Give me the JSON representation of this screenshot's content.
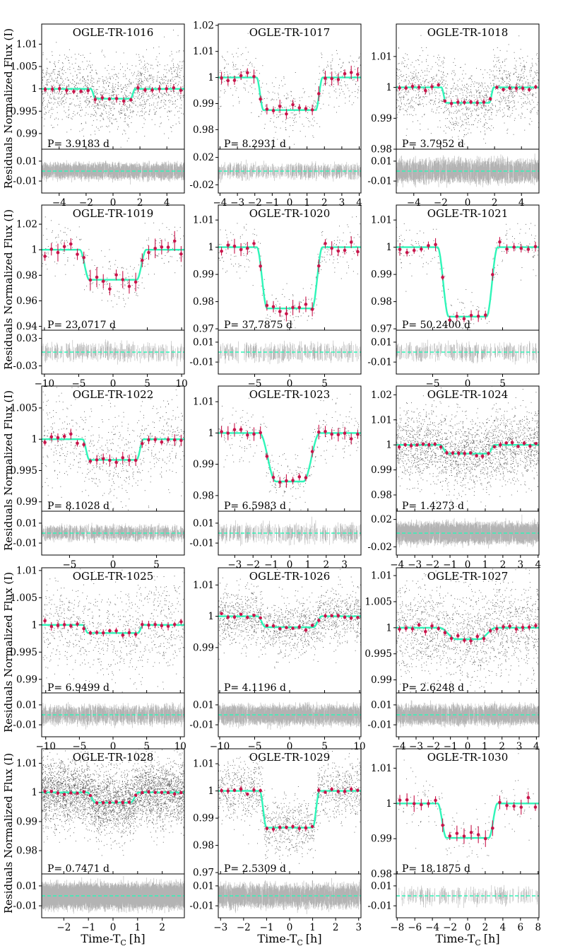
{
  "figure": {
    "ylabel": "Residuals Normalized Flux (I)",
    "xlabel": "Time-T",
    "xlabel_sub": "C",
    "xlabel_unit": "[h]",
    "colors": {
      "model": "#2ff5b8",
      "binned": "#c8144a",
      "raw": "#222222",
      "residual": "#999999"
    }
  },
  "chart_data": [
    {
      "type": "scatter",
      "title": "OGLE-TR-1016",
      "period_label": "P= 3.9183 d",
      "xlim": [
        -5.3,
        5.3
      ],
      "xticks": [
        -4,
        -2,
        0,
        2,
        4
      ],
      "ylim": [
        0.9865,
        1.0145
      ],
      "yticks": [
        0.99,
        0.995,
        1,
        1.005,
        1.01
      ],
      "ytick_labels": [
        "0.99",
        "0.995",
        "1",
        "1.005",
        "1.01"
      ],
      "res_ylim": [
        -0.022,
        0.022
      ],
      "res_yticks": [
        -0.01,
        0.01
      ],
      "res_ytick_labels": [
        "-0.01",
        "0.01"
      ],
      "depth": 0.0022,
      "t14": 3.3,
      "tin": 0.35,
      "scatter": 0.0038,
      "n_raw": 1400,
      "n_bins": 20,
      "bin_err": 0.0006
    },
    {
      "type": "scatter",
      "title": "OGLE-TR-1017",
      "period_label": "P= 8.2931 d",
      "xlim": [
        -4.1,
        4.1
      ],
      "xticks": [
        -4,
        -3,
        -2,
        -1,
        0,
        1,
        2,
        3,
        4
      ],
      "ylim": [
        0.9725,
        1.0205
      ],
      "yticks": [
        0.98,
        0.99,
        1,
        1.01,
        1.02
      ],
      "ytick_labels": [
        "0.98",
        "0.99",
        "1",
        "1.01",
        "1.02"
      ],
      "res_ylim": [
        -0.032,
        0.032
      ],
      "res_yticks": [
        -0.02,
        0.02
      ],
      "res_ytick_labels": [
        "-0.02",
        "0.02"
      ],
      "depth": 0.0125,
      "t14": 3.8,
      "tin": 0.4,
      "scatter": 0.0055,
      "n_raw": 450,
      "n_bins": 22,
      "bin_err": 0.0018
    },
    {
      "type": "scatter",
      "title": "OGLE-TR-1018",
      "period_label": "P= 3.7952 d",
      "xlim": [
        -5.3,
        5.3
      ],
      "xticks": [
        -4,
        -2,
        0,
        2,
        4
      ],
      "ylim": [
        0.98,
        1.0205
      ],
      "yticks": [
        0.98,
        0.99,
        1,
        1.01
      ],
      "ytick_labels": [
        "0.98",
        "0.99",
        "1",
        "1.01"
      ],
      "res_ylim": [
        -0.022,
        0.022
      ],
      "res_yticks": [
        -0.01,
        0.01
      ],
      "res_ytick_labels": [
        "-0.01",
        "0.01"
      ],
      "depth": 0.005,
      "t14": 3.9,
      "tin": 0.35,
      "scatter": 0.0055,
      "n_raw": 1300,
      "n_bins": 22,
      "bin_err": 0.0008
    },
    {
      "type": "scatter",
      "title": "OGLE-TR-1019",
      "period_label": "P= 23.0717 d",
      "xlim": [
        -10.4,
        10.4
      ],
      "xticks": [
        -10,
        -5,
        0,
        5,
        10
      ],
      "ylim": [
        0.937,
        1.035
      ],
      "yticks": [
        0.94,
        0.96,
        0.98,
        1,
        1.02
      ],
      "ytick_labels": [
        "0.94",
        "0.96",
        "0.98",
        "1",
        "1.02"
      ],
      "res_ylim": [
        -0.048,
        0.048
      ],
      "res_yticks": [
        -0.03,
        0.03
      ],
      "res_ytick_labels": [
        "-0.03",
        "0.03"
      ],
      "depth": 0.0235,
      "t14": 9.7,
      "tin": 1.4,
      "scatter": 0.0095,
      "n_raw": 260,
      "n_bins": 22,
      "bin_err": 0.005
    },
    {
      "type": "scatter",
      "title": "OGLE-TR-1020",
      "period_label": "P= 37.7875 d",
      "xlim": [
        -10.2,
        10.2
      ],
      "xticks": [
        -5,
        0,
        5
      ],
      "ylim": [
        0.9695,
        1.0155
      ],
      "yticks": [
        0.97,
        0.98,
        0.99,
        1,
        1.01
      ],
      "ytick_labels": [
        "0.97",
        "0.98",
        "0.99",
        "1",
        "1.01"
      ],
      "res_ylim": [
        -0.022,
        0.022
      ],
      "res_yticks": [
        -0.01,
        0.01
      ],
      "res_ytick_labels": [
        "-0.01",
        "0.01"
      ],
      "depth": 0.0225,
      "t14": 9.4,
      "tin": 1.5,
      "scatter": 0.0045,
      "n_raw": 260,
      "n_bins": 22,
      "bin_err": 0.0018
    },
    {
      "type": "scatter",
      "title": "OGLE-TR-1021",
      "period_label": "P= 50.2400 d",
      "xlim": [
        -10.2,
        10.2
      ],
      "xticks": [
        -5,
        0,
        5
      ],
      "ylim": [
        0.9695,
        1.0155
      ],
      "yticks": [
        0.97,
        0.98,
        0.99,
        1,
        1.01
      ],
      "ytick_labels": [
        "0.97",
        "0.98",
        "0.99",
        "1",
        "1.01"
      ],
      "res_ylim": [
        -0.022,
        0.022
      ],
      "res_yticks": [
        -0.01,
        0.01
      ],
      "res_ytick_labels": [
        "-0.01",
        "0.01"
      ],
      "depth": 0.0255,
      "t14": 8.6,
      "tin": 1.6,
      "scatter": 0.0045,
      "n_raw": 230,
      "n_bins": 20,
      "bin_err": 0.0015
    },
    {
      "type": "scatter",
      "title": "OGLE-TR-1022",
      "period_label": "P= 8.1028 d",
      "xlim": [
        -8.2,
        8.2
      ],
      "xticks": [
        -5,
        0,
        5
      ],
      "ylim": [
        0.9885,
        1.0085
      ],
      "yticks": [
        0.99,
        0.995,
        1,
        1.005
      ],
      "ytick_labels": [
        "0.99",
        "0.995",
        "1",
        "1.005"
      ],
      "res_ylim": [
        -0.022,
        0.022
      ],
      "res_yticks": [
        -0.01,
        0.01
      ],
      "res_ytick_labels": [
        "-0.01",
        "0.01"
      ],
      "depth": 0.0033,
      "t14": 7.0,
      "tin": 0.8,
      "scatter": 0.0035,
      "n_raw": 700,
      "n_bins": 22,
      "bin_err": 0.0006
    },
    {
      "type": "scatter",
      "title": "OGLE-TR-1023",
      "period_label": "P= 6.5983 d",
      "xlim": [
        -3.9,
        3.9
      ],
      "xticks": [
        -3,
        -2,
        -1,
        0,
        1,
        2,
        3
      ],
      "ylim": [
        0.975,
        1.015
      ],
      "yticks": [
        0.98,
        0.99,
        1,
        1.01
      ],
      "ytick_labels": [
        "0.98",
        "0.99",
        "1",
        "1.01"
      ],
      "res_ylim": [
        -0.022,
        0.022
      ],
      "res_yticks": [
        -0.01,
        0.01
      ],
      "res_ytick_labels": [
        "-0.01",
        "0.01"
      ],
      "depth": 0.0155,
      "t14": 3.3,
      "tin": 0.9,
      "scatter": 0.0045,
      "n_raw": 320,
      "n_bins": 22,
      "bin_err": 0.0015
    },
    {
      "type": "scatter",
      "title": "OGLE-TR-1024",
      "period_label": "P= 1.4273 d",
      "xlim": [
        -4.05,
        4.05
      ],
      "xticks": [
        -4,
        -3,
        -2,
        -1,
        0,
        1,
        2,
        3,
        4
      ],
      "ylim": [
        0.9735,
        1.0235
      ],
      "yticks": [
        0.98,
        0.99,
        1,
        1.01,
        1.02
      ],
      "ytick_labels": [
        "0.98",
        "0.99",
        "1",
        "1.01",
        "1.02"
      ],
      "res_ylim": [
        -0.032,
        0.032
      ],
      "res_yticks": [
        -0.02,
        0.02
      ],
      "res_ytick_labels": [
        "-0.02",
        "0.02"
      ],
      "depth": 0.0035,
      "t14": 3.1,
      "tin": 0.4,
      "scatter": 0.007,
      "n_raw": 2200,
      "n_bins": 24,
      "bin_err": 0.0008
    },
    {
      "type": "scatter",
      "title": "OGLE-TR-1025",
      "period_label": "P= 6.9499 d",
      "xlim": [
        -10.6,
        10.6
      ],
      "xticks": [
        -10,
        -5,
        0,
        5,
        10
      ],
      "ylim": [
        0.9875,
        1.0105
      ],
      "yticks": [
        0.99,
        0.995,
        1,
        1.005,
        1.01
      ],
      "ytick_labels": [
        "0.99",
        "0.995",
        "1",
        "1.005",
        "1.01"
      ],
      "res_ylim": [
        -0.022,
        0.022
      ],
      "res_yticks": [
        -0.01,
        0.01
      ],
      "res_ytick_labels": [
        "-0.01",
        "0.01"
      ],
      "depth": 0.0015,
      "t14": 9.0,
      "tin": 0.8,
      "scatter": 0.0045,
      "n_raw": 900,
      "n_bins": 22,
      "bin_err": 0.0005
    },
    {
      "type": "scatter",
      "title": "OGLE-TR-1026",
      "period_label": "P= 4.1196 d",
      "xlim": [
        -10.2,
        10.2
      ],
      "xticks": [
        -10,
        -5,
        0,
        5,
        10
      ],
      "ylim": [
        0.9755,
        1.0155
      ],
      "yticks": [
        0.99,
        1,
        1.01
      ],
      "ytick_labels": [
        "0.99",
        "1",
        "1.01"
      ],
      "res_ylim": [
        -0.022,
        0.022
      ],
      "res_yticks": [
        -0.01,
        0.01
      ],
      "res_ytick_labels": [
        "-0.01",
        "0.01"
      ],
      "depth": 0.0035,
      "t14": 9.2,
      "tin": 1.2,
      "scatter": 0.0045,
      "n_raw": 1600,
      "n_bins": 22,
      "bin_err": 0.0005
    },
    {
      "type": "scatter",
      "title": "OGLE-TR-1027",
      "period_label": "P= 2.6248 d",
      "xlim": [
        -4.15,
        4.15
      ],
      "xticks": [
        -4,
        -3,
        -2,
        -1,
        0,
        1,
        2,
        3,
        4
      ],
      "ylim": [
        0.9875,
        1.0115
      ],
      "yticks": [
        0.99,
        0.995,
        1,
        1.005,
        1.01
      ],
      "ytick_labels": [
        "0.99",
        "0.995",
        "1",
        "1.005",
        "1.01"
      ],
      "res_ylim": [
        -0.022,
        0.022
      ],
      "res_yticks": [
        -0.01,
        0.01
      ],
      "res_ytick_labels": [
        "-0.01",
        "0.01"
      ],
      "depth": 0.0022,
      "t14": 3.3,
      "tin": 1.0,
      "scatter": 0.0045,
      "n_raw": 1600,
      "n_bins": 22,
      "bin_err": 0.0005
    },
    {
      "type": "scatter",
      "title": "OGLE-TR-1028",
      "period_label": "P= 0.7471 d",
      "xlim": [
        -2.9,
        2.9
      ],
      "xticks": [
        -2,
        -1,
        0,
        1,
        2
      ],
      "ylim": [
        0.972,
        1.015
      ],
      "yticks": [
        0.98,
        0.99,
        1,
        1.01
      ],
      "ytick_labels": [
        "0.98",
        "0.99",
        "1",
        "1.01"
      ],
      "res_ylim": [
        -0.022,
        0.022
      ],
      "res_yticks": [
        -0.01,
        0.01
      ],
      "res_ytick_labels": [
        "-0.01",
        "0.01"
      ],
      "depth": 0.0035,
      "t14": 2.1,
      "tin": 0.35,
      "scatter": 0.0055,
      "n_raw": 4200,
      "n_bins": 22,
      "bin_err": 0.0005
    },
    {
      "type": "scatter",
      "title": "OGLE-TR-1029",
      "period_label": "P= 2.5309 d",
      "xlim": [
        -3.1,
        3.1
      ],
      "xticks": [
        -3,
        -2,
        -1,
        0,
        1,
        2,
        3
      ],
      "ylim": [
        0.9695,
        1.0155
      ],
      "yticks": [
        0.97,
        0.98,
        0.99,
        1,
        1.01
      ],
      "ytick_labels": [
        "0.97",
        "0.98",
        "0.99",
        "1",
        "1.01"
      ],
      "res_ylim": [
        -0.022,
        0.022
      ],
      "res_yticks": [
        -0.01,
        0.01
      ],
      "res_ytick_labels": [
        "-0.01",
        "0.01"
      ],
      "depth": 0.0135,
      "t14": 2.6,
      "tin": 0.3,
      "scatter": 0.0055,
      "n_raw": 1400,
      "n_bins": 22,
      "bin_err": 0.0008
    },
    {
      "type": "scatter",
      "title": "OGLE-TR-1030",
      "period_label": "P= 18.1875 d",
      "xlim": [
        -8.1,
        8.1
      ],
      "xticks": [
        -8,
        -6,
        -4,
        -2,
        0,
        2,
        4,
        6,
        8
      ],
      "ylim": [
        0.98,
        1.0155
      ],
      "yticks": [
        0.98,
        0.99,
        1,
        1.01
      ],
      "ytick_labels": [
        "0.98",
        "0.99",
        "1",
        "1.01"
      ],
      "res_ylim": [
        -0.022,
        0.022
      ],
      "res_yticks": [
        -0.01,
        0.01
      ],
      "res_ytick_labels": [
        "-0.01",
        "0.01"
      ],
      "depth": 0.0098,
      "t14": 6.8,
      "tin": 1.0,
      "scatter": 0.0045,
      "n_raw": 160,
      "n_bins": 20,
      "bin_err": 0.0015
    }
  ]
}
